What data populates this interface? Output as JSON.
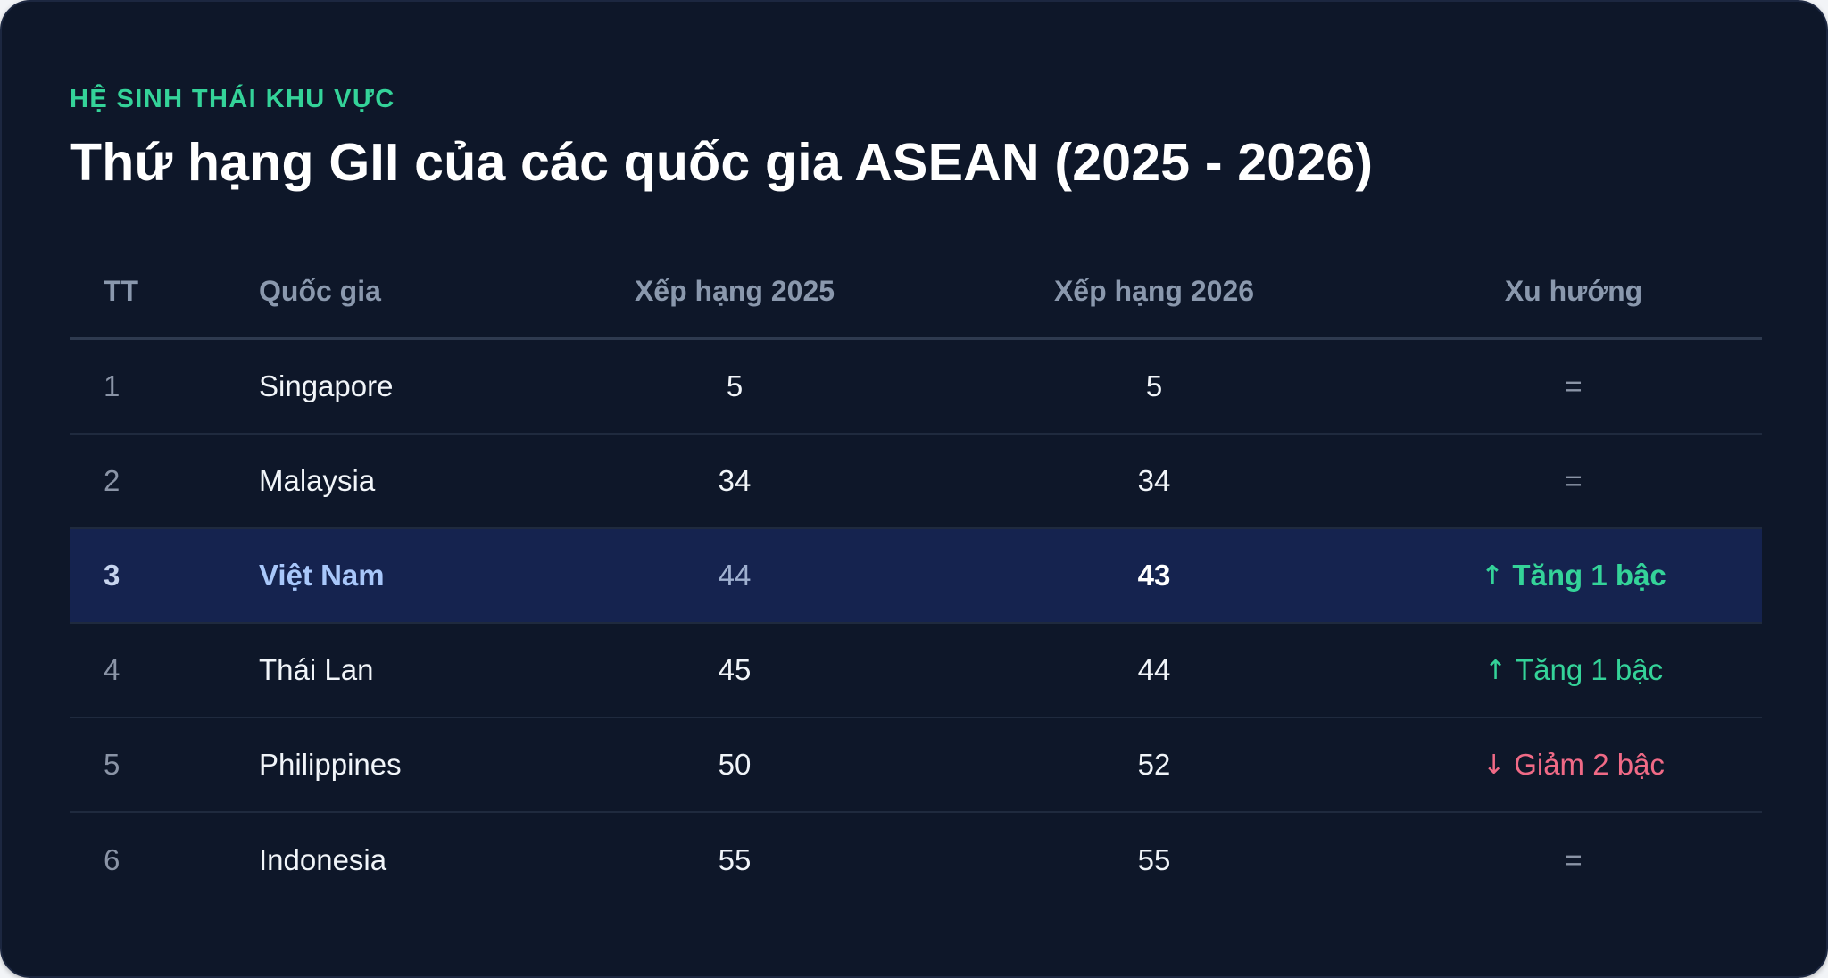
{
  "eyebrow": "HỆ SINH THÁI KHU VỰC",
  "title": "Thứ hạng GII của các quốc gia ASEAN (2025 - 2026)",
  "table": {
    "headers": [
      "TT",
      "Quốc gia",
      "Xếp hạng 2025",
      "Xếp hạng 2026",
      "Xu hướng"
    ],
    "rows": [
      {
        "tt": "1",
        "country": "Singapore",
        "rank_2025": "5",
        "rank_2026": "5",
        "trend": "=",
        "trend_type": "equal",
        "highlighted": false
      },
      {
        "tt": "2",
        "country": "Malaysia",
        "rank_2025": "34",
        "rank_2026": "34",
        "trend": "=",
        "trend_type": "equal",
        "highlighted": false
      },
      {
        "tt": "3",
        "country": "Việt Nam",
        "rank_2025": "44",
        "rank_2026": "43",
        "trend": "↑ Tăng 1 bậc",
        "trend_type": "up",
        "highlighted": true
      },
      {
        "tt": "4",
        "country": "Thái Lan",
        "rank_2025": "45",
        "rank_2026": "44",
        "trend": "↑ Tăng 1 bậc",
        "trend_type": "up",
        "highlighted": false
      },
      {
        "tt": "5",
        "country": "Philippines",
        "rank_2025": "50",
        "rank_2026": "52",
        "trend": "↓ Giảm 2 bậc",
        "trend_type": "down",
        "highlighted": false
      },
      {
        "tt": "6",
        "country": "Indonesia",
        "rank_2025": "55",
        "rank_2026": "55",
        "trend": "=",
        "trend_type": "equal",
        "highlighted": false
      }
    ]
  },
  "colors": {
    "background": "#0e1729",
    "accent_green": "#34d399",
    "down_red": "#f06a86",
    "highlight_row": "#15234f",
    "highlight_text": "#a8c7fa"
  }
}
